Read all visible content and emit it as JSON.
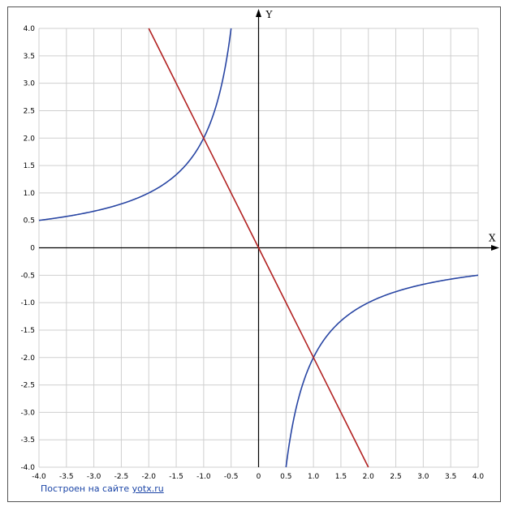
{
  "credit": {
    "text": "Построен на сайте",
    "link": "yotx.ru"
  },
  "chart_data": {
    "type": "line",
    "title": "",
    "xlabel": "X",
    "ylabel": "Y",
    "xlim": [
      -4,
      4
    ],
    "ylim": [
      -4,
      4
    ],
    "grid": true,
    "xticks": [
      "-4.0",
      "-3.5",
      "-3.0",
      "-2.5",
      "-2.0",
      "-1.5",
      "-1.0",
      "-0.5",
      "0",
      "0.5",
      "1.0",
      "1.5",
      "2.0",
      "2.5",
      "3.0",
      "3.5",
      "4.0"
    ],
    "yticks": [
      "4.0",
      "3.5",
      "3.0",
      "2.5",
      "2.0",
      "1.5",
      "1.0",
      "0.5",
      "0",
      "-0.5",
      "-1.0",
      "-1.5",
      "-2.0",
      "-2.5",
      "-3.0",
      "-3.5",
      "-4.0"
    ],
    "series": [
      {
        "color": "#2845a3",
        "x": [
          -4,
          -3.5,
          -3,
          -2.5,
          -2,
          -1.5,
          -1,
          -0.8,
          -0.7,
          -0.6,
          -0.5
        ],
        "y": [
          0.5,
          0.571,
          0.667,
          0.8,
          1,
          1.333,
          2,
          2.5,
          2.857,
          3.333,
          4
        ]
      },
      {
        "color": "#2845a3",
        "x": [
          0.5,
          0.6,
          0.7,
          0.8,
          1,
          1.5,
          2,
          2.5,
          3,
          3.5,
          4
        ],
        "y": [
          -4,
          -3.333,
          -2.857,
          -2.5,
          -2,
          -1.333,
          -1,
          -0.8,
          -0.667,
          -0.571,
          -0.5
        ]
      },
      {
        "color": "#b22222",
        "x": [
          -2,
          2
        ],
        "y": [
          4,
          -4
        ]
      }
    ]
  }
}
